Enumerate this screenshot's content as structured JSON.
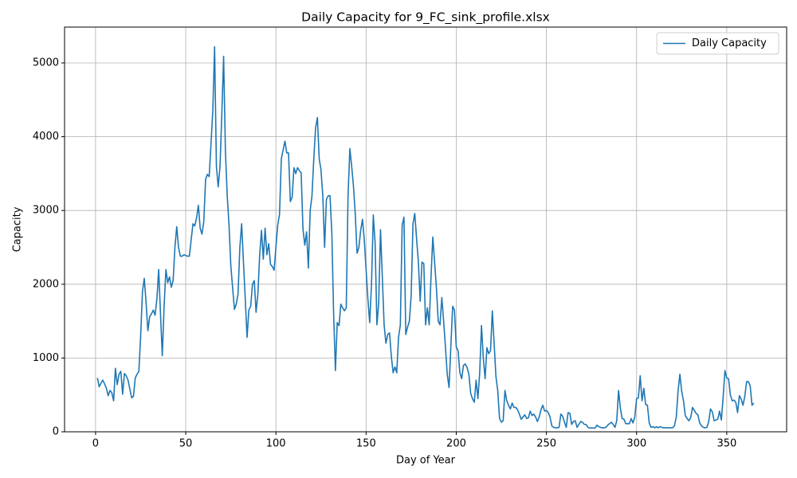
{
  "chart_data": {
    "type": "line",
    "title": "Daily Capacity for 9_FC_sink_profile.xlsx",
    "x_label": "Day of Year",
    "y_label": "Capacity",
    "x": [
      1,
      2,
      3,
      4,
      5,
      6,
      7,
      8,
      9,
      10,
      11,
      12,
      13,
      14,
      15,
      16,
      17,
      18,
      19,
      20,
      21,
      22,
      23,
      24,
      25,
      26,
      27,
      28,
      29,
      30,
      31,
      32,
      33,
      34,
      35,
      36,
      37,
      38,
      39,
      40,
      41,
      42,
      43,
      44,
      45,
      46,
      47,
      48,
      49,
      50,
      51,
      52,
      53,
      54,
      55,
      56,
      57,
      58,
      59,
      60,
      61,
      62,
      63,
      64,
      65,
      66,
      67,
      68,
      69,
      70,
      71,
      72,
      73,
      74,
      75,
      76,
      77,
      78,
      79,
      80,
      81,
      82,
      83,
      84,
      85,
      86,
      87,
      88,
      89,
      90,
      91,
      92,
      93,
      94,
      95,
      96,
      97,
      98,
      99,
      100,
      101,
      102,
      103,
      104,
      105,
      106,
      107,
      108,
      109,
      110,
      111,
      112,
      113,
      114,
      115,
      116,
      117,
      118,
      119,
      120,
      121,
      122,
      123,
      124,
      125,
      126,
      127,
      128,
      129,
      130,
      131,
      132,
      133,
      134,
      135,
      136,
      137,
      138,
      139,
      140,
      141,
      142,
      143,
      144,
      145,
      146,
      147,
      148,
      149,
      150,
      151,
      152,
      153,
      154,
      155,
      156,
      157,
      158,
      159,
      160,
      161,
      162,
      163,
      164,
      165,
      166,
      167,
      168,
      169,
      170,
      171,
      172,
      173,
      174,
      175,
      176,
      177,
      178,
      179,
      180,
      181,
      182,
      183,
      184,
      185,
      186,
      187,
      188,
      189,
      190,
      191,
      192,
      193,
      194,
      195,
      196,
      197,
      198,
      199,
      200,
      201,
      202,
      203,
      204,
      205,
      206,
      207,
      208,
      209,
      210,
      211,
      212,
      213,
      214,
      215,
      216,
      217,
      218,
      219,
      220,
      221,
      222,
      223,
      224,
      225,
      226,
      227,
      228,
      229,
      230,
      231,
      232,
      233,
      234,
      235,
      236,
      237,
      238,
      239,
      240,
      241,
      242,
      243,
      244,
      245,
      246,
      247,
      248,
      249,
      250,
      251,
      252,
      253,
      254,
      255,
      256,
      257,
      258,
      259,
      260,
      261,
      262,
      263,
      264,
      265,
      266,
      267,
      268,
      269,
      270,
      271,
      272,
      273,
      274,
      275,
      276,
      277,
      278,
      279,
      280,
      281,
      282,
      283,
      284,
      285,
      286,
      287,
      288,
      289,
      290,
      291,
      292,
      293,
      294,
      295,
      296,
      297,
      298,
      299,
      300,
      301,
      302,
      303,
      304,
      305,
      306,
      307,
      308,
      309,
      310,
      311,
      312,
      313,
      314,
      315,
      316,
      317,
      318,
      319,
      320,
      321,
      322,
      323,
      324,
      325,
      326,
      327,
      328,
      329,
      330,
      331,
      332,
      333,
      334,
      335,
      336,
      337,
      338,
      339,
      340,
      341,
      342,
      343,
      344,
      345,
      346,
      347,
      348,
      349,
      350,
      351,
      352,
      353,
      354,
      355,
      356,
      357,
      358,
      359,
      360,
      361,
      362,
      363,
      364,
      365
    ],
    "series": [
      {
        "name": "Daily Capacity",
        "color": "#1f77b4",
        "values": [
          730,
          610,
          660,
          700,
          650,
          590,
          490,
          560,
          530,
          420,
          860,
          640,
          780,
          820,
          510,
          790,
          760,
          700,
          580,
          460,
          480,
          730,
          780,
          820,
          1300,
          1900,
          2080,
          1750,
          1370,
          1560,
          1600,
          1650,
          1580,
          1800,
          2200,
          1600,
          1030,
          1700,
          2200,
          2020,
          2100,
          1960,
          2050,
          2500,
          2780,
          2500,
          2380,
          2380,
          2400,
          2390,
          2380,
          2380,
          2600,
          2820,
          2790,
          2900,
          3070,
          2760,
          2680,
          2850,
          3420,
          3490,
          3460,
          3900,
          4350,
          5220,
          3600,
          3320,
          3600,
          4300,
          5090,
          3800,
          3200,
          2800,
          2250,
          1950,
          1660,
          1730,
          1870,
          2500,
          2820,
          2300,
          1800,
          1280,
          1650,
          1700,
          2000,
          2050,
          1620,
          1870,
          2400,
          2730,
          2340,
          2760,
          2400,
          2550,
          2270,
          2240,
          2190,
          2500,
          2800,
          2950,
          3700,
          3820,
          3940,
          3780,
          3780,
          3120,
          3180,
          3580,
          3500,
          3580,
          3540,
          3510,
          2750,
          2530,
          2710,
          2220,
          3000,
          3200,
          3700,
          4120,
          4260,
          3700,
          3550,
          3200,
          2500,
          3150,
          3200,
          3200,
          2700,
          1600,
          830,
          1480,
          1440,
          1730,
          1680,
          1640,
          1680,
          3200,
          3840,
          3600,
          3330,
          2950,
          2420,
          2500,
          2730,
          2880,
          2600,
          2200,
          1800,
          1480,
          2000,
          2940,
          2560,
          1450,
          1750,
          2740,
          2100,
          1450,
          1200,
          1320,
          1340,
          1020,
          800,
          880,
          800,
          1280,
          1450,
          2800,
          2910,
          1320,
          1420,
          1500,
          1850,
          2820,
          2960,
          2620,
          2300,
          1770,
          2300,
          2280,
          1450,
          1680,
          1450,
          2100,
          2640,
          2300,
          1950,
          1500,
          1450,
          1820,
          1500,
          1150,
          780,
          600,
          1150,
          1700,
          1650,
          1150,
          1100,
          800,
          720,
          900,
          920,
          870,
          780,
          520,
          450,
          400,
          700,
          450,
          800,
          1440,
          1000,
          720,
          1140,
          1060,
          1100,
          1640,
          1200,
          750,
          560,
          180,
          130,
          150,
          560,
          420,
          360,
          310,
          390,
          330,
          330,
          300,
          240,
          170,
          200,
          230,
          180,
          190,
          280,
          220,
          240,
          200,
          140,
          200,
          300,
          360,
          280,
          290,
          260,
          200,
          80,
          60,
          55,
          55,
          60,
          240,
          210,
          130,
          60,
          260,
          250,
          100,
          140,
          150,
          60,
          100,
          140,
          130,
          100,
          100,
          60,
          50,
          55,
          50,
          50,
          90,
          70,
          60,
          55,
          55,
          60,
          90,
          110,
          130,
          100,
          60,
          150,
          560,
          320,
          180,
          170,
          110,
          110,
          110,
          180,
          120,
          200,
          450,
          460,
          760,
          420,
          590,
          370,
          360,
          120,
          60,
          70,
          55,
          70,
          55,
          70,
          60,
          55,
          55,
          55,
          55,
          55,
          55,
          80,
          200,
          550,
          780,
          550,
          420,
          220,
          180,
          150,
          190,
          330,
          290,
          250,
          230,
          120,
          80,
          60,
          55,
          60,
          140,
          310,
          270,
          150,
          160,
          170,
          280,
          160,
          470,
          830,
          730,
          720,
          500,
          420,
          430,
          400,
          260,
          490,
          440,
          360,
          480,
          680,
          680,
          620,
          360,
          390
        ]
      }
    ],
    "xlim": [
      -17.2,
      383.2
    ],
    "ylim": [
      0,
      5486
    ],
    "xticks": [
      0,
      50,
      100,
      150,
      200,
      250,
      300,
      350
    ],
    "yticks": [
      0,
      1000,
      2000,
      3000,
      4000,
      5000
    ],
    "grid": true,
    "legend": "upper right"
  }
}
